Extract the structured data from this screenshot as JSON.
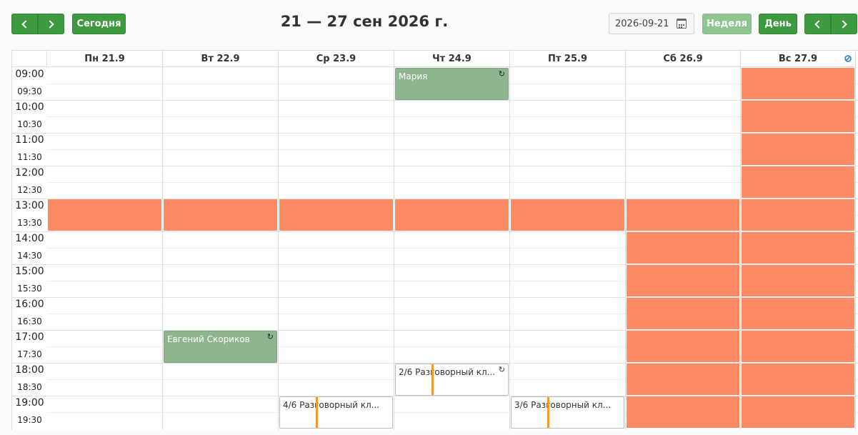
{
  "toolbar": {
    "today_label": "Сегодня",
    "title": "21 — 27 сен 2026 г.",
    "date_value": "2026-09-21",
    "week_label": "Неделя",
    "day_label": "День"
  },
  "days": [
    "Пн 21.9",
    "Вт 22.9",
    "Ср 23.9",
    "Чт 24.9",
    "Пт 25.9",
    "Сб 26.9",
    "Вс 27.9"
  ],
  "times": [
    "09:00",
    "09:30",
    "10:00",
    "10:30",
    "11:00",
    "11:30",
    "12:00",
    "12:30",
    "13:00",
    "13:30",
    "14:00",
    "14:30",
    "15:00",
    "15:30",
    "16:00",
    "16:30",
    "17:00",
    "17:30",
    "18:00",
    "18:30",
    "19:00",
    "19:30"
  ],
  "events": [
    {
      "day": 3,
      "start": "09:00",
      "end": "10:00",
      "label": "Мария",
      "style": "green",
      "recurring": true
    },
    {
      "day": 1,
      "start": "17:00",
      "end": "18:00",
      "label": "Евгений Скориков",
      "style": "green",
      "recurring": true
    },
    {
      "day": 3,
      "start": "18:00",
      "end": "19:00",
      "label": "2/6 Разговорный кл...",
      "style": "white",
      "recurring": true
    },
    {
      "day": 2,
      "start": "19:00",
      "end": "20:00",
      "label": "4/6 Разговорный кл...",
      "style": "white",
      "recurring": false
    },
    {
      "day": 4,
      "start": "19:00",
      "end": "20:00",
      "label": "3/6 Разговорный кл...",
      "style": "white",
      "recurring": false
    }
  ],
  "blocked": [
    {
      "day": 0,
      "start": "13:00",
      "end": "14:00"
    },
    {
      "day": 1,
      "start": "13:00",
      "end": "14:00"
    },
    {
      "day": 2,
      "start": "13:00",
      "end": "14:00"
    },
    {
      "day": 3,
      "start": "13:00",
      "end": "14:00"
    },
    {
      "day": 4,
      "start": "13:00",
      "end": "14:00"
    },
    {
      "day": 5,
      "start": "13:00",
      "end": "20:00"
    },
    {
      "day": 6,
      "start": "09:00",
      "end": "20:00"
    }
  ],
  "colors": {
    "accent": "#3e9a3e",
    "accent_light": "#8fc58f",
    "blocked": "#ff8a66",
    "event_green": "#8fb58f",
    "event_marker": "#f29a2e"
  },
  "icons": {
    "prev": "chevron-left-icon",
    "next": "chevron-right-icon",
    "calendar": "calendar-icon",
    "recurring": "recurring-icon",
    "sync": "sync-icon"
  }
}
